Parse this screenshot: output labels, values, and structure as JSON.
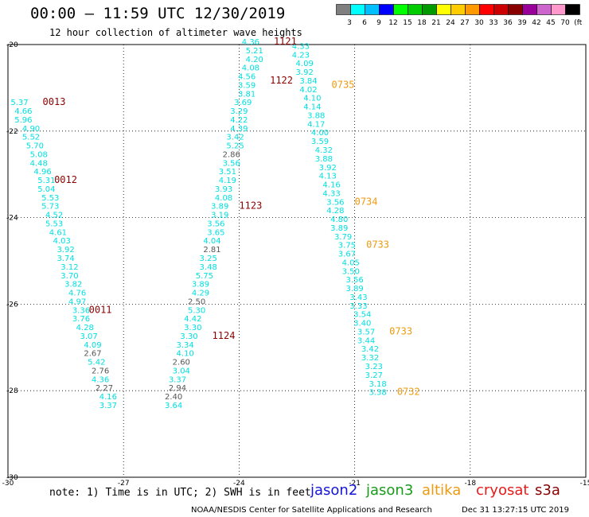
{
  "title": "00:00 – 11:59 UTC 12/30/2019",
  "subtitle": "12 hour collection of altimeter wave heights",
  "note": "note: 1) Time is in UTC; 2) SWH is in feet",
  "credit": "NOAA/NESDIS Center for Satellite Applications and Research",
  "timestamp": "Dec 31 13:27:15 UTC 2019",
  "colorbar": {
    "labels": [
      "3",
      "6",
      "9",
      "12",
      "15",
      "18",
      "21",
      "24",
      "27",
      "30",
      "33",
      "36",
      "39",
      "42",
      "45",
      "70",
      "(ft)"
    ],
    "colors": [
      "#7f7f7f",
      "#00ffff",
      "#00bfff",
      "#0000ff",
      "#00ff00",
      "#00cc00",
      "#009900",
      "#ffff00",
      "#ffcc00",
      "#ff9900",
      "#ff0000",
      "#cc0000",
      "#880000",
      "#990099",
      "#cc66cc",
      "#ff99cc",
      "#000000"
    ]
  },
  "legend": [
    {
      "label": "jason2",
      "color": "#1515d8"
    },
    {
      "label": "jason3",
      "color": "#1a9a1a"
    },
    {
      "label": "altika",
      "color": "#ee9a10"
    },
    {
      "label": "cryosat",
      "color": "#e81a1a"
    },
    {
      "label": "s3a",
      "color": "#8b0000"
    }
  ],
  "chart_data": {
    "type": "scatter",
    "title": "00:00 – 11:59 UTC 12/30/2019",
    "subtitle": "12 hour collection of altimeter wave heights",
    "xlim": [
      -30,
      -15
    ],
    "ylim": [
      -30,
      -20
    ],
    "x_ticks": [
      "-30",
      "-27",
      "-24",
      "-21",
      "-18",
      "-15"
    ],
    "y_ticks": [
      "-20",
      "-22",
      "-24",
      "-26",
      "-28",
      "-30"
    ],
    "grid": true,
    "series": [
      {
        "name": "s3a",
        "color": "#00e0e0",
        "alt_color": "#555555",
        "points": [
          {
            "x": -29.7,
            "y": -21.4,
            "v": "5.37"
          },
          {
            "x": -29.6,
            "y": -21.6,
            "v": "4.66"
          },
          {
            "x": -29.6,
            "y": -21.8,
            "v": "5.96"
          },
          {
            "x": -29.4,
            "y": -22.0,
            "v": "4.90"
          },
          {
            "x": -29.4,
            "y": -22.2,
            "v": "5.52"
          },
          {
            "x": -29.3,
            "y": -22.4,
            "v": "5.70"
          },
          {
            "x": -29.2,
            "y": -22.6,
            "v": "5.08"
          },
          {
            "x": -29.2,
            "y": -22.8,
            "v": "4.48"
          },
          {
            "x": -29.1,
            "y": -23.0,
            "v": "4.96"
          },
          {
            "x": -29.0,
            "y": -23.2,
            "v": "5.31"
          },
          {
            "x": -29.0,
            "y": -23.4,
            "v": "5.04"
          },
          {
            "x": -28.9,
            "y": -23.6,
            "v": "5.53"
          },
          {
            "x": -28.9,
            "y": -23.8,
            "v": "5.73"
          },
          {
            "x": -28.8,
            "y": -24.0,
            "v": "4.52"
          },
          {
            "x": -28.8,
            "y": -24.2,
            "v": "5.53"
          },
          {
            "x": -28.7,
            "y": -24.4,
            "v": "4.61"
          },
          {
            "x": -28.6,
            "y": -24.6,
            "v": "4.03"
          },
          {
            "x": -28.5,
            "y": -24.8,
            "v": "3.92"
          },
          {
            "x": -28.5,
            "y": -25.0,
            "v": "3.74"
          },
          {
            "x": -28.4,
            "y": -25.2,
            "v": "3.12"
          },
          {
            "x": -28.4,
            "y": -25.4,
            "v": "3.70"
          },
          {
            "x": -28.3,
            "y": -25.6,
            "v": "3.82"
          },
          {
            "x": -28.2,
            "y": -25.8,
            "v": "4.76"
          },
          {
            "x": -28.2,
            "y": -26.0,
            "v": "4.97"
          },
          {
            "x": -28.1,
            "y": -26.2,
            "v": "3.36"
          },
          {
            "x": -28.1,
            "y": -26.4,
            "v": "3.76"
          },
          {
            "x": -28.0,
            "y": -26.6,
            "v": "4.28"
          },
          {
            "x": -27.9,
            "y": -26.8,
            "v": "3.07"
          },
          {
            "x": -27.8,
            "y": -27.0,
            "v": "4.09"
          },
          {
            "x": -27.8,
            "y": -27.2,
            "v": "2.67",
            "gray": true
          },
          {
            "x": -27.7,
            "y": -27.4,
            "v": "5.42"
          },
          {
            "x": -27.6,
            "y": -27.6,
            "v": "2.76",
            "gray": true
          },
          {
            "x": -27.6,
            "y": -27.8,
            "v": "4.36"
          },
          {
            "x": -27.5,
            "y": -28.0,
            "v": "2.27",
            "gray": true
          },
          {
            "x": -27.4,
            "y": -28.2,
            "v": "4.16"
          },
          {
            "x": -27.4,
            "y": -28.4,
            "v": "3.37"
          }
        ]
      },
      {
        "name": "s3a",
        "color": "#00e0e0",
        "alt_color": "#555555",
        "points": [
          {
            "x": -23.7,
            "y": -20.0,
            "v": "4.36"
          },
          {
            "x": -23.6,
            "y": -20.2,
            "v": "5.21"
          },
          {
            "x": -23.6,
            "y": -20.4,
            "v": "4.20"
          },
          {
            "x": -23.7,
            "y": -20.6,
            "v": "4.08"
          },
          {
            "x": -23.8,
            "y": -20.8,
            "v": "4.56"
          },
          {
            "x": -23.8,
            "y": -21.0,
            "v": "3.59"
          },
          {
            "x": -23.8,
            "y": -21.2,
            "v": "3.81"
          },
          {
            "x": -23.9,
            "y": -21.4,
            "v": "3.69"
          },
          {
            "x": -24.0,
            "y": -21.6,
            "v": "3.29"
          },
          {
            "x": -24.0,
            "y": -21.8,
            "v": "4.22"
          },
          {
            "x": -24.0,
            "y": -22.0,
            "v": "4.39"
          },
          {
            "x": -24.1,
            "y": -22.2,
            "v": "3.42"
          },
          {
            "x": -24.1,
            "y": -22.4,
            "v": "5.25"
          },
          {
            "x": -24.2,
            "y": -22.6,
            "v": "2.86",
            "gray": true
          },
          {
            "x": -24.2,
            "y": -22.8,
            "v": "3.56"
          },
          {
            "x": -24.3,
            "y": -23.0,
            "v": "3.51"
          },
          {
            "x": -24.3,
            "y": -23.2,
            "v": "4.19"
          },
          {
            "x": -24.4,
            "y": -23.4,
            "v": "3.93"
          },
          {
            "x": -24.4,
            "y": -23.6,
            "v": "4.08"
          },
          {
            "x": -24.5,
            "y": -23.8,
            "v": "3.89"
          },
          {
            "x": -24.5,
            "y": -24.0,
            "v": "3.19"
          },
          {
            "x": -24.6,
            "y": -24.2,
            "v": "3.56"
          },
          {
            "x": -24.6,
            "y": -24.4,
            "v": "3.65"
          },
          {
            "x": -24.7,
            "y": -24.6,
            "v": "4.04"
          },
          {
            "x": -24.7,
            "y": -24.8,
            "v": "2.81",
            "gray": true
          },
          {
            "x": -24.8,
            "y": -25.0,
            "v": "3.25"
          },
          {
            "x": -24.8,
            "y": -25.2,
            "v": "3.48"
          },
          {
            "x": -24.9,
            "y": -25.4,
            "v": "5.75"
          },
          {
            "x": -25.0,
            "y": -25.6,
            "v": "3.89"
          },
          {
            "x": -25.0,
            "y": -25.8,
            "v": "4.29"
          },
          {
            "x": -25.1,
            "y": -26.0,
            "v": "2.50",
            "gray": true
          },
          {
            "x": -25.1,
            "y": -26.2,
            "v": "5.30"
          },
          {
            "x": -25.2,
            "y": -26.4,
            "v": "4.42"
          },
          {
            "x": -25.2,
            "y": -26.6,
            "v": "3.30"
          },
          {
            "x": -25.3,
            "y": -26.8,
            "v": "3.30"
          },
          {
            "x": -25.4,
            "y": -27.0,
            "v": "3.34"
          },
          {
            "x": -25.4,
            "y": -27.2,
            "v": "4.10"
          },
          {
            "x": -25.5,
            "y": -27.4,
            "v": "2.60",
            "gray": true
          },
          {
            "x": -25.5,
            "y": -27.6,
            "v": "3.04"
          },
          {
            "x": -25.6,
            "y": -27.8,
            "v": "3.37"
          },
          {
            "x": -25.6,
            "y": -28.0,
            "v": "2.94",
            "gray": true
          },
          {
            "x": -25.7,
            "y": -28.2,
            "v": "2.40",
            "gray": true
          },
          {
            "x": -25.7,
            "y": -28.4,
            "v": "3.64"
          }
        ]
      },
      {
        "name": "s3a",
        "color": "#00e0e0",
        "alt_color": "#555555",
        "points": [
          {
            "x": -22.4,
            "y": -20.1,
            "v": "4.33"
          },
          {
            "x": -22.4,
            "y": -20.3,
            "v": "4.23"
          },
          {
            "x": -22.3,
            "y": -20.5,
            "v": "4.09"
          },
          {
            "x": -22.3,
            "y": -20.7,
            "v": "3.92"
          },
          {
            "x": -22.2,
            "y": -20.9,
            "v": "3.84"
          },
          {
            "x": -22.2,
            "y": -21.1,
            "v": "4.02"
          },
          {
            "x": -22.1,
            "y": -21.3,
            "v": "4.10"
          },
          {
            "x": -22.1,
            "y": -21.5,
            "v": "4.14"
          },
          {
            "x": -22.0,
            "y": -21.7,
            "v": "3.88"
          },
          {
            "x": -22.0,
            "y": -21.9,
            "v": "4.17"
          },
          {
            "x": -21.9,
            "y": -22.1,
            "v": "4.00"
          },
          {
            "x": -21.9,
            "y": -22.3,
            "v": "3.59"
          },
          {
            "x": -21.8,
            "y": -22.5,
            "v": "4.32"
          },
          {
            "x": -21.8,
            "y": -22.7,
            "v": "3.88"
          },
          {
            "x": -21.7,
            "y": -22.9,
            "v": "3.92"
          },
          {
            "x": -21.7,
            "y": -23.1,
            "v": "4.13"
          },
          {
            "x": -21.6,
            "y": -23.3,
            "v": "4.16"
          },
          {
            "x": -21.6,
            "y": -23.5,
            "v": "4.33"
          },
          {
            "x": -21.5,
            "y": -23.7,
            "v": "3.56"
          },
          {
            "x": -21.5,
            "y": -23.9,
            "v": "4.28"
          },
          {
            "x": -21.4,
            "y": -24.1,
            "v": "4.80"
          },
          {
            "x": -21.4,
            "y": -24.3,
            "v": "3.89"
          },
          {
            "x": -21.3,
            "y": -24.5,
            "v": "3.79"
          },
          {
            "x": -21.2,
            "y": -24.7,
            "v": "3.75"
          },
          {
            "x": -21.2,
            "y": -24.9,
            "v": "3.67"
          },
          {
            "x": -21.1,
            "y": -25.1,
            "v": "4.05"
          },
          {
            "x": -21.1,
            "y": -25.3,
            "v": "3.50"
          },
          {
            "x": -21.0,
            "y": -25.5,
            "v": "3.56"
          },
          {
            "x": -21.0,
            "y": -25.7,
            "v": "3.89"
          },
          {
            "x": -20.9,
            "y": -25.9,
            "v": "3.43"
          },
          {
            "x": -20.9,
            "y": -26.1,
            "v": "3.33"
          },
          {
            "x": -20.8,
            "y": -26.3,
            "v": "3.54"
          },
          {
            "x": -20.8,
            "y": -26.5,
            "v": "3.40"
          },
          {
            "x": -20.7,
            "y": -26.7,
            "v": "3.57"
          },
          {
            "x": -20.7,
            "y": -26.9,
            "v": "3.44"
          },
          {
            "x": -20.6,
            "y": -27.1,
            "v": "3.42"
          },
          {
            "x": -20.6,
            "y": -27.3,
            "v": "3.32"
          },
          {
            "x": -20.5,
            "y": -27.5,
            "v": "3.23"
          },
          {
            "x": -20.5,
            "y": -27.7,
            "v": "3.27"
          },
          {
            "x": -20.4,
            "y": -27.9,
            "v": "3.18"
          },
          {
            "x": -20.4,
            "y": -28.1,
            "v": "3.38"
          }
        ]
      }
    ],
    "time_annotations": [
      {
        "x": -29.1,
        "y": -21.4,
        "label": "0013",
        "color": "#8b0000"
      },
      {
        "x": -28.8,
        "y": -23.2,
        "label": "0012",
        "color": "#8b0000"
      },
      {
        "x": -27.9,
        "y": -26.2,
        "label": "0011",
        "color": "#8b0000"
      },
      {
        "x": -23.1,
        "y": -20.0,
        "label": "1121",
        "color": "#8b0000"
      },
      {
        "x": -23.2,
        "y": -20.9,
        "label": "1122",
        "color": "#8b0000"
      },
      {
        "x": -24.0,
        "y": -23.8,
        "label": "1123",
        "color": "#8b0000"
      },
      {
        "x": -24.7,
        "y": -26.8,
        "label": "1124",
        "color": "#8b0000"
      },
      {
        "x": -21.6,
        "y": -21.0,
        "label": "0735",
        "color": "#ee9a10"
      },
      {
        "x": -21.0,
        "y": -23.7,
        "label": "0734",
        "color": "#ee9a10"
      },
      {
        "x": -20.7,
        "y": -24.7,
        "label": "0733",
        "color": "#ee9a10"
      },
      {
        "x": -20.1,
        "y": -26.7,
        "label": "0733",
        "color": "#ee9a10"
      },
      {
        "x": -19.9,
        "y": -28.1,
        "label": "0732",
        "color": "#ee9a10"
      }
    ]
  }
}
